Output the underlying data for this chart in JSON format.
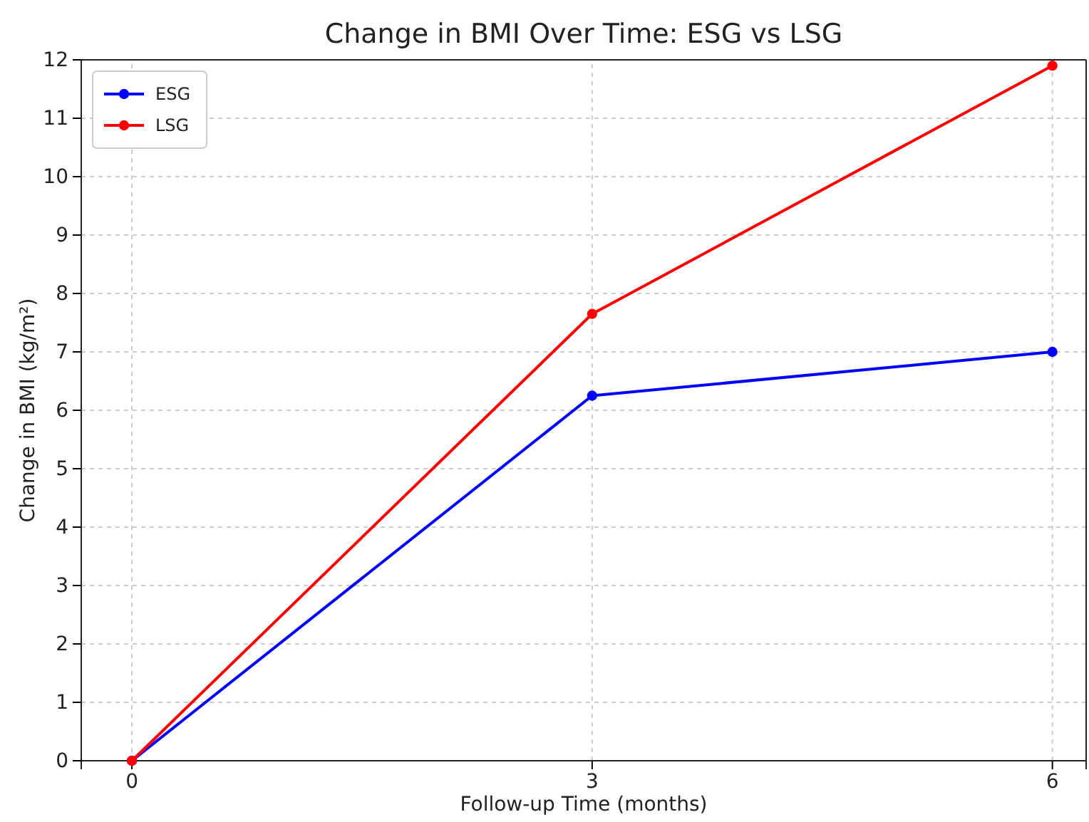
{
  "chart_data": {
    "type": "line",
    "title": "Change in BMI Over Time: ESG vs LSG",
    "xlabel": "Follow-up Time (months)",
    "ylabel": "Change in BMI (kg/m²)",
    "x": [
      0,
      3,
      6
    ],
    "series": [
      {
        "name": "ESG",
        "color": "#0000ff",
        "values": [
          0,
          6.25,
          7.0
        ]
      },
      {
        "name": "LSG",
        "color": "#ff0000",
        "values": [
          0,
          7.65,
          11.9
        ]
      }
    ],
    "xlim": [
      -0.33,
      6.22
    ],
    "xticks": [
      0,
      3,
      6
    ],
    "ylim": [
      0,
      12
    ],
    "yticks": [
      0,
      1,
      2,
      3,
      4,
      5,
      6,
      7,
      8,
      9,
      10,
      11,
      12
    ],
    "grid": true,
    "legend": "top left",
    "marker": "circle",
    "line_style": "solid"
  }
}
